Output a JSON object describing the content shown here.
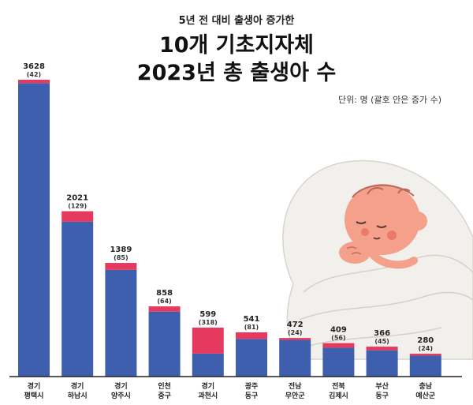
{
  "chart_data": {
    "type": "bar",
    "stacked": true,
    "supertitle": "5년 전 대비 출생아 증가한",
    "title_line1": "10개 기초지자체",
    "title_line2": "2023년 총 출생아 수",
    "unit_note": "단위: 명 (괄호 안은 증가 수)",
    "categories": [
      [
        "경기",
        "평택시"
      ],
      [
        "경기",
        "하남시"
      ],
      [
        "경기",
        "양주시"
      ],
      [
        "인천",
        "중구"
      ],
      [
        "경기",
        "과천시"
      ],
      [
        "광주",
        "동구"
      ],
      [
        "전남",
        "무안군"
      ],
      [
        "전북",
        "김제시"
      ],
      [
        "부산",
        "동구"
      ],
      [
        "충남",
        "예산군"
      ]
    ],
    "totals": [
      3628,
      2021,
      1389,
      858,
      599,
      541,
      472,
      409,
      366,
      280
    ],
    "increases": [
      42,
      129,
      85,
      64,
      318,
      81,
      24,
      56,
      45,
      24
    ],
    "increase_labels": [
      "(42)",
      "(129)",
      "(85)",
      "(64)",
      "(318)",
      "(81)",
      "(24)",
      "(56)",
      "(45)",
      "(24)"
    ],
    "colors": {
      "base": "#3d5fae",
      "increase": "#e5395f",
      "axis": "#222222"
    },
    "ylim": [
      0,
      3800
    ],
    "grid": false,
    "legend": "none"
  },
  "illustration": {
    "icon": "sleeping-baby-illustration"
  }
}
